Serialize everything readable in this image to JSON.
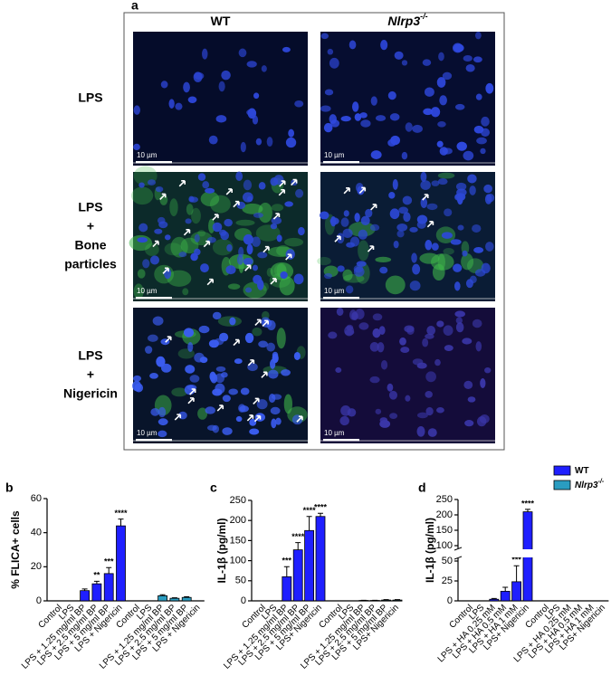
{
  "panel_a": {
    "label": "a",
    "columns": [
      {
        "text": "WT"
      },
      {
        "text": "Nlrp3",
        "sup": "-/-"
      }
    ],
    "rows": [
      [
        "LPS"
      ],
      [
        "LPS",
        "+",
        "Bone",
        "particles"
      ],
      [
        "LPS",
        "+",
        "Nigericin"
      ]
    ],
    "scale_bar": "10 µm"
  },
  "chart_data": [
    {
      "type": "bar",
      "panel_label": "b",
      "ylabel": "% FLICA+ cells",
      "categories": [
        "Control",
        "LPS",
        "LPS + 1.25 mg/ml BP",
        "LPS + 2.5 mg/ml BP",
        "LPS + 5 mg/ml BP",
        "LPS + Nigericin",
        "Control",
        "LPS",
        "LPS + 1.25 mg/ml BP",
        "LPS + 2.5 mg/ml BP",
        "LPS + 5 mg/ml BP",
        "LPS + Nigericin"
      ],
      "ylim": [
        0,
        60
      ],
      "yticks": [
        0,
        20,
        40,
        60
      ],
      "series": [
        {
          "color": "#1f1fff",
          "values": [
            0,
            0,
            6,
            10,
            16,
            44,
            null,
            null,
            null,
            null,
            null,
            null
          ],
          "errors": [
            0,
            0,
            1,
            1.5,
            3.5,
            4,
            null,
            null,
            null,
            null,
            null,
            null
          ],
          "significance": [
            null,
            null,
            null,
            "**",
            "***",
            "****",
            null,
            null,
            null,
            null,
            null,
            null
          ]
        },
        {
          "color": "#2a9cc0",
          "values": [
            null,
            null,
            null,
            null,
            null,
            null,
            0,
            0,
            3,
            1.5,
            2,
            0
          ],
          "errors": [
            null,
            null,
            null,
            null,
            null,
            null,
            0,
            0,
            0.6,
            0.3,
            0.4,
            0
          ]
        }
      ]
    },
    {
      "type": "bar",
      "panel_label": "c",
      "ylabel": "IL-1β (pg/ml)",
      "categories": [
        "Control",
        "LPS",
        "LPS + 1.25 mg/ml BP",
        "LPS + 2.5 mg/ml BP",
        "LPS + 5 mg/ml BP",
        "LPS+ Nigericin",
        "Control",
        "LPS",
        "LPS + 1.25 mg/ml BP",
        "LPS + 2.5 mg/ml BP",
        "LPS + 5 mg/ml BP",
        "LPS+ Nigericin"
      ],
      "ylim": [
        0,
        250
      ],
      "yticks": [
        0,
        50,
        100,
        150,
        200,
        250
      ],
      "series": [
        {
          "color": "#1f1fff",
          "values": [
            0,
            0,
            60,
            127,
            175,
            210,
            null,
            null,
            null,
            null,
            null,
            null
          ],
          "errors": [
            0,
            0,
            25,
            18,
            35,
            8,
            null,
            null,
            null,
            null,
            null,
            null
          ],
          "significance": [
            null,
            null,
            "***",
            "****",
            "****",
            "****",
            null,
            null,
            null,
            null,
            null,
            null
          ]
        },
        {
          "color": "#2a9cc0",
          "values": [
            null,
            null,
            null,
            null,
            null,
            null,
            0,
            0,
            1,
            1,
            2,
            2
          ],
          "errors": [
            null,
            null,
            null,
            null,
            null,
            null,
            0,
            0,
            0.5,
            0.5,
            1,
            1
          ]
        }
      ]
    },
    {
      "type": "bar",
      "panel_label": "d",
      "ylabel": "IL-1β (pg/ml)",
      "categories": [
        "Control",
        "LPS",
        "LPS + HA 0.25 mM",
        "LPS + HA 0.5 mM",
        "LPS + HA 1 mM",
        "LPS+ Nigericin",
        "Control",
        "LPS",
        "LPS + HA 0.25 mM",
        "LPS + HA 0.5 mM",
        "LPS + HA 1 mM",
        "LPS+ Nigericin"
      ],
      "ylim": [
        0,
        250
      ],
      "ybreak": [
        50,
        100
      ],
      "yticks": [
        0,
        25,
        50,
        100,
        150,
        200,
        250
      ],
      "legend": "top-right",
      "series": [
        {
          "name": "WT",
          "color": "#1f1fff",
          "values": [
            0,
            0,
            2,
            12,
            24,
            210,
            null,
            null,
            null,
            null,
            null,
            null
          ],
          "errors": [
            0,
            0,
            1,
            5,
            20,
            8,
            null,
            null,
            null,
            null,
            null,
            null
          ],
          "significance": [
            null,
            null,
            null,
            null,
            "***",
            "****",
            null,
            null,
            null,
            null,
            null,
            null
          ]
        },
        {
          "name": "Nlrp3",
          "name_sup": "-/-",
          "color": "#2a9cc0",
          "values": [
            null,
            null,
            null,
            null,
            null,
            null,
            0,
            0,
            0,
            0,
            0,
            0
          ],
          "errors": [
            null,
            null,
            null,
            null,
            null,
            null,
            0,
            0,
            0,
            0,
            0,
            0
          ]
        }
      ]
    }
  ]
}
